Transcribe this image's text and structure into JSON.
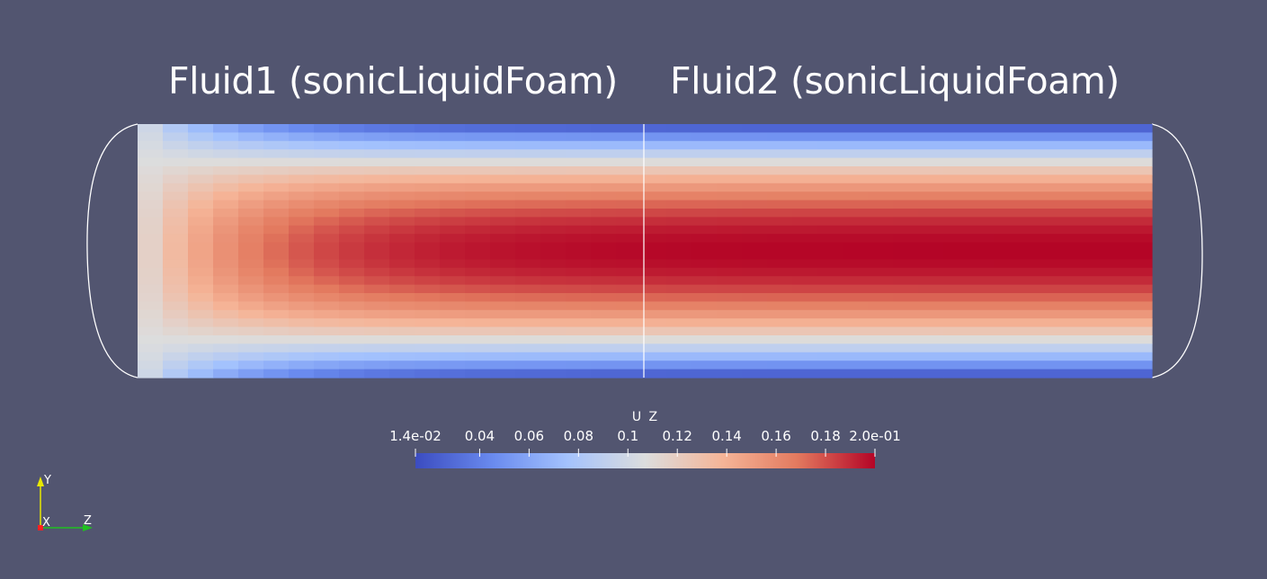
{
  "labels": {
    "region1": "Fluid1 (sonicLiquidFoam)",
    "region2": "Fluid2 (sonicLiquidFoam)"
  },
  "colorbar": {
    "title": "U Z",
    "ticks": [
      "1.4e-02",
      "0.04",
      "0.06",
      "0.08",
      "0.1",
      "0.12",
      "0.14",
      "0.16",
      "0.18",
      "2.0e-01"
    ],
    "tick_values": [
      0.014,
      0.04,
      0.06,
      0.08,
      0.1,
      0.12,
      0.14,
      0.16,
      0.18,
      0.2
    ],
    "range": [
      0.014,
      0.2
    ],
    "colors": [
      "#3b4cc0",
      "#6a8bef",
      "#a4c2fd",
      "#dcdddd",
      "#f5b497",
      "#e37a5f",
      "#b40426"
    ]
  },
  "orientation_axes": {
    "x": "X",
    "y": "Y",
    "z": "Z",
    "colors": {
      "x": "#ff2020",
      "y": "#e8e800",
      "z": "#20c020"
    }
  },
  "background_color": "#525570"
}
